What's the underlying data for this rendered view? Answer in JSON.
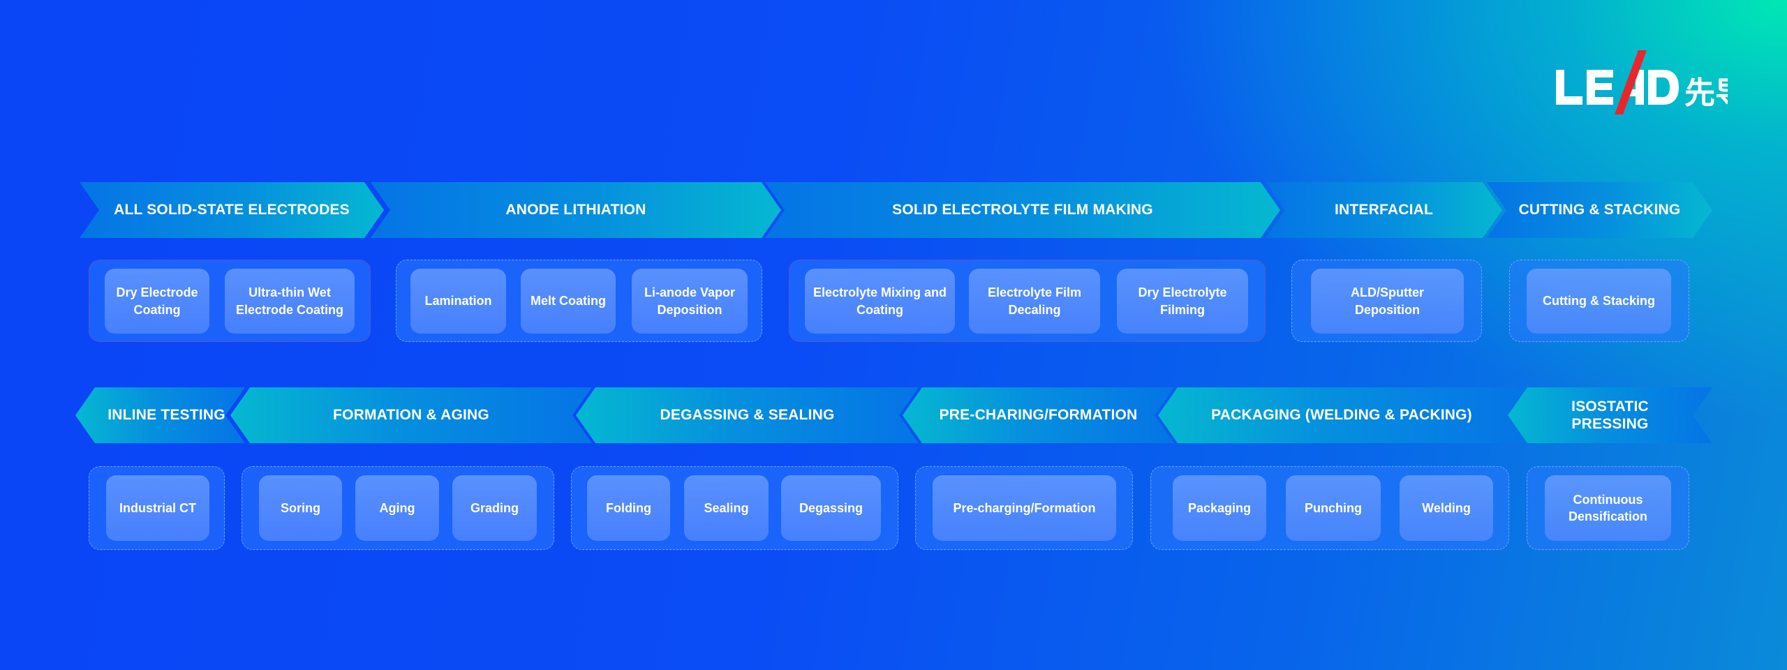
{
  "logo": {
    "text": "LEAD",
    "chinese": "先导",
    "accent": "#e8262c"
  },
  "colors": {
    "bg_start": "#0a45f6",
    "bg_end": "#00e8b4"
  },
  "row1": {
    "stages": [
      "ALL SOLID-STATE ELECTRODES",
      "ANODE LITHIATION",
      "SOLID ELECTROLYTE FILM MAKING",
      "INTERFACIAL",
      "CUTTING & STACKING"
    ],
    "groups": [
      {
        "items": [
          "Dry Electrode Coating",
          "Ultra-thin Wet Electrode Coating"
        ]
      },
      {
        "items": [
          "Lamination",
          "Melt Coating",
          "Li-anode Vapor Deposition"
        ]
      },
      {
        "items": [
          "Electrolyte Mixing and Coating",
          "Electrolyte Film Decaling",
          "Dry Electrolyte Filming"
        ]
      },
      {
        "items": [
          "ALD/Sputter Deposition"
        ]
      },
      {
        "items": [
          "Cutting & Stacking"
        ]
      }
    ]
  },
  "row2": {
    "stages": [
      "INLINE TESTING",
      "FORMATION & AGING",
      "DEGASSING & SEALING",
      "PRE-CHARING/FORMATION",
      "PACKAGING (WELDING & PACKING)",
      "ISOSTATIC PRESSING"
    ],
    "groups": [
      {
        "items": [
          "Industrial CT"
        ]
      },
      {
        "items": [
          "Soring",
          "Aging",
          "Grading"
        ]
      },
      {
        "items": [
          "Folding",
          "Sealing",
          "Degassing"
        ]
      },
      {
        "items": [
          "Pre-charging/Formation"
        ]
      },
      {
        "items": [
          "Packaging",
          "Punching",
          "Welding"
        ]
      },
      {
        "items": [
          "Continuous Densification"
        ]
      }
    ]
  }
}
